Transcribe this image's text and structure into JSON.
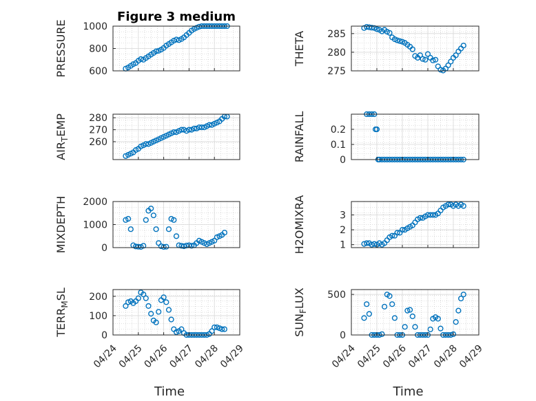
{
  "figure": {
    "title": "Figure 3 medium",
    "marker_color": "#0072bd",
    "axis_color": "#262626",
    "grid_color": "#b0b0b0",
    "xlabel": "Time",
    "date_ticks": [
      "04/24",
      "04/25",
      "04/26",
      "04/27",
      "04/28",
      "04/29"
    ]
  },
  "chart_data": [
    {
      "type": "scatter",
      "title": "Figure 3 medium",
      "ylabel": "PRESSURE",
      "ylim": [
        600,
        1000
      ],
      "yticks": [
        "600",
        "800",
        "1000"
      ],
      "xlim": [
        "04/24",
        "04/29"
      ],
      "grid": true,
      "x": [
        0.5,
        0.6,
        0.7,
        0.8,
        0.9,
        1.0,
        1.1,
        1.2,
        1.3,
        1.4,
        1.5,
        1.6,
        1.7,
        1.8,
        1.9,
        2.0,
        2.1,
        2.2,
        2.3,
        2.4,
        2.5,
        2.6,
        2.7,
        2.8,
        2.9,
        3.0,
        3.1,
        3.2,
        3.3,
        3.4,
        3.5,
        3.6,
        3.7,
        3.8,
        3.9,
        4.0,
        4.1,
        4.2,
        4.3,
        4.4,
        4.5
      ],
      "y": [
        620,
        630,
        645,
        660,
        670,
        690,
        705,
        700,
        715,
        730,
        745,
        760,
        775,
        780,
        790,
        805,
        825,
        840,
        855,
        870,
        880,
        875,
        885,
        900,
        920,
        940,
        960,
        975,
        985,
        995,
        1000,
        1000,
        1000,
        1000,
        1000,
        1000,
        1000,
        1000,
        1000,
        1000,
        1000
      ]
    },
    {
      "type": "scatter",
      "ylabel": "THETA",
      "ylim": [
        275,
        287
      ],
      "yticks": [
        "275",
        "280",
        "285"
      ],
      "xlim": [
        "04/24",
        "04/29"
      ],
      "grid": true,
      "x": [
        0.5,
        0.6,
        0.7,
        0.8,
        0.9,
        1.0,
        1.1,
        1.2,
        1.3,
        1.4,
        1.5,
        1.6,
        1.7,
        1.8,
        1.9,
        2.0,
        2.1,
        2.2,
        2.3,
        2.4,
        2.5,
        2.6,
        2.7,
        2.8,
        2.9,
        3.0,
        3.1,
        3.2,
        3.3,
        3.4,
        3.5,
        3.6,
        3.7,
        3.8,
        3.9,
        4.0,
        4.1,
        4.2,
        4.3,
        4.4
      ],
      "y": [
        286.5,
        286.8,
        286.7,
        286.6,
        286.5,
        286.2,
        286.0,
        285.6,
        286.0,
        285.5,
        285.2,
        284.0,
        283.5,
        283.2,
        283.0,
        282.8,
        282.5,
        282.0,
        281.5,
        280.8,
        279.0,
        278.5,
        279.2,
        278.2,
        278.0,
        279.5,
        278.5,
        277.8,
        278.0,
        276.2,
        275.3,
        275.1,
        275.6,
        276.5,
        277.5,
        278.5,
        279.2,
        280.2,
        281.0,
        281.8
      ]
    },
    {
      "type": "scatter",
      "ylabel": "AIR_TEMP",
      "ylim": [
        245,
        283
      ],
      "yticks": [
        "260",
        "270",
        "280"
      ],
      "xlim": [
        "04/24",
        "04/29"
      ],
      "grid": true,
      "x": [
        0.5,
        0.6,
        0.7,
        0.8,
        0.9,
        1.0,
        1.1,
        1.2,
        1.3,
        1.4,
        1.5,
        1.6,
        1.7,
        1.8,
        1.9,
        2.0,
        2.1,
        2.2,
        2.3,
        2.4,
        2.5,
        2.6,
        2.7,
        2.8,
        2.9,
        3.0,
        3.1,
        3.2,
        3.3,
        3.4,
        3.5,
        3.6,
        3.7,
        3.8,
        3.9,
        4.0,
        4.1,
        4.2,
        4.3,
        4.4,
        4.5
      ],
      "y": [
        248,
        249,
        250,
        251,
        253,
        254,
        256,
        257,
        258,
        258,
        259,
        260,
        261,
        262,
        263,
        264,
        265,
        266,
        267,
        268,
        268,
        269,
        270,
        270,
        269,
        270,
        270,
        271,
        271,
        272,
        272,
        272,
        273,
        274,
        274,
        275,
        276,
        277,
        279,
        281,
        281
      ]
    },
    {
      "type": "scatter",
      "ylabel": "RAINFALL",
      "ylim": [
        0,
        0.3
      ],
      "yticks": [
        "0",
        "0.1",
        "0.2"
      ],
      "xlim": [
        "04/24",
        "04/29"
      ],
      "grid": true,
      "x": [
        0.6,
        0.7,
        0.8,
        0.9,
        0.95,
        1.0,
        1.05,
        1.1,
        1.2,
        1.3,
        1.4,
        1.5,
        1.6,
        1.7,
        1.8,
        1.9,
        2.0,
        2.1,
        2.2,
        2.3,
        2.4,
        2.5,
        2.6,
        2.7,
        2.8,
        2.9,
        3.0,
        3.1,
        3.2,
        3.3,
        3.4,
        3.5,
        3.6,
        3.7,
        3.8,
        3.9,
        4.0,
        4.1,
        4.2,
        4.3,
        4.4
      ],
      "y": [
        0.3,
        0.3,
        0.3,
        0.3,
        0.2,
        0.2,
        0.0,
        0,
        0,
        0,
        0,
        0,
        0,
        0,
        0,
        0,
        0,
        0,
        0,
        0,
        0,
        0,
        0,
        0,
        0,
        0,
        0,
        0,
        0,
        0,
        0,
        0,
        0,
        0,
        0,
        0,
        0,
        0,
        0,
        0,
        0
      ]
    },
    {
      "type": "scatter",
      "ylabel": "MIXDEPTH",
      "ylim": [
        0,
        2000
      ],
      "yticks": [
        "0",
        "1000",
        "2000"
      ],
      "xlim": [
        "04/24",
        "04/29"
      ],
      "grid": true,
      "x": [
        0.5,
        0.6,
        0.7,
        0.8,
        0.9,
        1.0,
        1.1,
        1.2,
        1.3,
        1.4,
        1.5,
        1.6,
        1.7,
        1.8,
        1.9,
        2.0,
        2.1,
        2.2,
        2.3,
        2.4,
        2.5,
        2.6,
        2.7,
        2.8,
        2.9,
        3.0,
        3.1,
        3.2,
        3.3,
        3.4,
        3.5,
        3.6,
        3.7,
        3.8,
        3.9,
        4.0,
        4.1,
        4.2,
        4.3,
        4.4
      ],
      "y": [
        1200,
        1250,
        800,
        100,
        50,
        40,
        30,
        80,
        1200,
        1600,
        1700,
        1400,
        800,
        200,
        60,
        30,
        40,
        800,
        1250,
        1200,
        500,
        100,
        80,
        60,
        90,
        100,
        80,
        100,
        200,
        300,
        250,
        200,
        150,
        200,
        250,
        300,
        450,
        500,
        550,
        650
      ]
    },
    {
      "type": "scatter",
      "ylabel": "H2OMIXRA",
      "ylim": [
        0.8,
        3.9
      ],
      "yticks": [
        "1",
        "2",
        "3"
      ],
      "xlim": [
        "04/24",
        "04/29"
      ],
      "grid": true,
      "x": [
        0.5,
        0.6,
        0.7,
        0.8,
        0.9,
        1.0,
        1.1,
        1.2,
        1.3,
        1.4,
        1.5,
        1.6,
        1.7,
        1.8,
        1.9,
        2.0,
        2.1,
        2.2,
        2.3,
        2.4,
        2.5,
        2.6,
        2.7,
        2.8,
        2.9,
        3.0,
        3.1,
        3.2,
        3.3,
        3.4,
        3.5,
        3.6,
        3.7,
        3.8,
        3.9,
        4.0,
        4.1,
        4.2,
        4.3,
        4.4
      ],
      "y": [
        1.05,
        1.1,
        1.1,
        1.0,
        1.05,
        1.0,
        1.1,
        1.0,
        1.1,
        1.3,
        1.5,
        1.6,
        1.6,
        1.8,
        1.8,
        2.0,
        2.0,
        2.1,
        2.2,
        2.3,
        2.5,
        2.7,
        2.8,
        2.8,
        2.9,
        3.0,
        3.0,
        3.0,
        3.0,
        3.1,
        3.3,
        3.5,
        3.6,
        3.7,
        3.7,
        3.6,
        3.7,
        3.6,
        3.7,
        3.6
      ]
    },
    {
      "type": "scatter",
      "ylabel": "TERR_MSL",
      "ylim": [
        0,
        235
      ],
      "yticks": [
        "0",
        "100",
        "200"
      ],
      "xlim": [
        "04/24",
        "04/29"
      ],
      "grid": true,
      "x": [
        0.5,
        0.6,
        0.7,
        0.8,
        0.9,
        1.0,
        1.1,
        1.2,
        1.3,
        1.4,
        1.5,
        1.6,
        1.7,
        1.8,
        1.9,
        2.0,
        2.1,
        2.2,
        2.3,
        2.4,
        2.5,
        2.6,
        2.7,
        2.8,
        2.9,
        3.0,
        3.1,
        3.2,
        3.3,
        3.4,
        3.5,
        3.6,
        3.7,
        3.8,
        3.9,
        4.0,
        4.1,
        4.2,
        4.3,
        4.4
      ],
      "y": [
        150,
        170,
        175,
        165,
        175,
        190,
        220,
        210,
        190,
        150,
        110,
        75,
        65,
        120,
        180,
        195,
        170,
        130,
        80,
        30,
        15,
        20,
        30,
        10,
        0,
        0,
        0,
        0,
        0,
        0,
        0,
        0,
        0,
        5,
        20,
        40,
        40,
        35,
        30,
        30
      ]
    },
    {
      "type": "scatter",
      "ylabel": "SUN_FLUX",
      "ylim": [
        0,
        560
      ],
      "yticks": [
        "0",
        "500"
      ],
      "xlim": [
        "04/24",
        "04/29"
      ],
      "grid": true,
      "x": [
        0.5,
        0.6,
        0.7,
        0.8,
        0.9,
        1.0,
        1.1,
        1.2,
        1.3,
        1.4,
        1.5,
        1.6,
        1.7,
        1.8,
        1.9,
        2.0,
        2.1,
        2.2,
        2.3,
        2.4,
        2.5,
        2.6,
        2.7,
        2.8,
        2.9,
        3.0,
        3.1,
        3.2,
        3.3,
        3.4,
        3.5,
        3.6,
        3.7,
        3.8,
        3.9,
        4.0,
        4.1,
        4.2,
        4.3,
        4.4
      ],
      "y": [
        210,
        380,
        260,
        0,
        0,
        0,
        0,
        10,
        350,
        500,
        480,
        380,
        210,
        0,
        0,
        0,
        100,
        300,
        310,
        230,
        100,
        0,
        0,
        0,
        0,
        0,
        70,
        200,
        220,
        200,
        80,
        0,
        0,
        0,
        0,
        10,
        160,
        300,
        450,
        500
      ]
    }
  ]
}
